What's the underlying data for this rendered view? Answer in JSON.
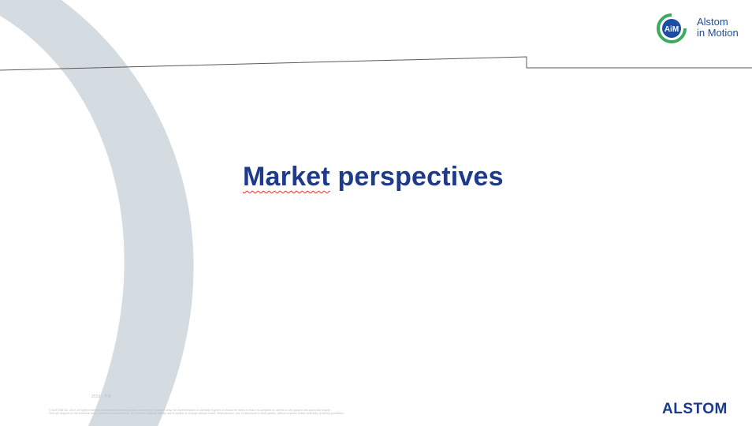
{
  "slide": {
    "title_word_1": "Market",
    "title_word_2": "perspectives",
    "footer_meta": "2019 – P 8",
    "footer_legal_1": "© ALSTOM SA, 2019. All rights reserved. Information contained in this document is indicative only. No representation or warranty is given or should be relied on that it is complete or correct or will apply to any particular project.",
    "footer_legal_2": "This will depend on the technical and commercial circumstances. It is provided without liability and is subject to change without notice. Reproduction, use or disclosure to third parties, without express written authority, is strictly prohibited."
  },
  "aim_logo": {
    "badge_text": "AiM",
    "name": "Alstom\nin Motion"
  },
  "brand": {
    "logo_text": "ALSTOM"
  },
  "colors": {
    "arc": "#d4dbe1",
    "title": "#1e3a8a",
    "brand": "#1a3a8c",
    "aim_green": "#3aaa5c",
    "aim_blue": "#1d4ea0",
    "alstom_red": "#e1261c"
  }
}
